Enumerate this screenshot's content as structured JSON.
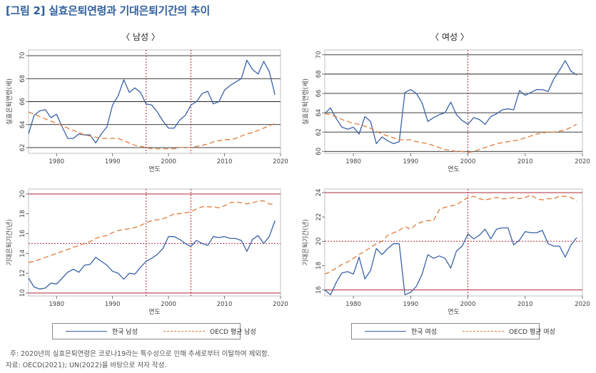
{
  "figure": {
    "title": "[그림 2] 실효은퇴연령과 기대은퇴기간의 추이",
    "panel_titles": {
      "male": "〈 남성 〉",
      "female": "〈 여성 〉"
    },
    "legends": {
      "male": [
        "한국 남성",
        "OECD 평균 남성"
      ],
      "female": [
        "한국 여성",
        "OECD 평균 여성"
      ]
    },
    "notes": [
      "주:  2020년의 실효은퇴연령은 코로나19라는 특수성으로 인해 추세로부터 이탈하여 제외함.",
      "자료: OECD(2021); UN(2022)을 바탕으로 저자 작성."
    ],
    "colors": {
      "korea": "#3a62a8",
      "oecd": "#e07b39",
      "vline": "#b0283a",
      "hline": "#b0283a",
      "grid": "#222222"
    }
  },
  "chart_data": [
    {
      "type": "line",
      "panel": "male-retirement-age",
      "xlabel": "연도",
      "ylabel": "실효은퇴연령(세)",
      "xlim": [
        1975,
        2020
      ],
      "ylim": [
        61.5,
        70.5
      ],
      "xticks": [
        1980,
        1990,
        2000,
        2010,
        2020
      ],
      "yticks": [
        62,
        64,
        66,
        68,
        70
      ],
      "grid": "horizontal",
      "vlines": [
        1996,
        2004
      ],
      "hlines": [],
      "x": [
        1975,
        1976,
        1977,
        1978,
        1979,
        1980,
        1981,
        1982,
        1983,
        1984,
        1985,
        1986,
        1987,
        1988,
        1989,
        1990,
        1991,
        1992,
        1993,
        1994,
        1995,
        1996,
        1997,
        1998,
        1999,
        2000,
        2001,
        2002,
        2003,
        2004,
        2005,
        2006,
        2007,
        2008,
        2009,
        2010,
        2011,
        2012,
        2013,
        2014,
        2015,
        2016,
        2017,
        2018,
        2019
      ],
      "series": [
        {
          "name": "한국 남성",
          "style": "solid",
          "values": [
            63.2,
            64.8,
            65.2,
            65.3,
            64.6,
            64.9,
            63.8,
            62.8,
            62.8,
            63.2,
            63.1,
            63.1,
            62.4,
            63.2,
            63.8,
            65.7,
            66.5,
            67.9,
            66.8,
            67.2,
            66.8,
            65.8,
            65.7,
            65.1,
            64.3,
            63.7,
            63.7,
            64.4,
            64.8,
            65.7,
            66.0,
            66.7,
            66.9,
            65.8,
            66.0,
            67.0,
            67.4,
            67.7,
            68.0,
            69.6,
            68.8,
            68.4,
            69.5,
            68.6,
            66.6
          ]
        },
        {
          "name": "OECD 평균 남성",
          "style": "dashed",
          "values": [
            65.1,
            64.9,
            64.7,
            64.5,
            64.3,
            64.1,
            63.9,
            63.7,
            63.5,
            63.3,
            63.1,
            63.0,
            62.9,
            62.8,
            62.8,
            62.8,
            62.8,
            62.6,
            62.4,
            62.2,
            62.1,
            62.0,
            61.9,
            61.9,
            61.9,
            61.9,
            61.9,
            62.0,
            62.0,
            62.0,
            62.1,
            62.2,
            62.3,
            62.5,
            62.6,
            62.7,
            62.7,
            62.8,
            63.0,
            63.2,
            63.3,
            63.5,
            63.7,
            63.9,
            64.1
          ]
        }
      ]
    },
    {
      "type": "line",
      "panel": "female-retirement-age",
      "xlabel": "연도",
      "ylabel": "실효은퇴연령(세)",
      "xlim": [
        1975,
        2020
      ],
      "ylim": [
        59.8,
        70.5
      ],
      "xticks": [
        1980,
        1990,
        2000,
        2010,
        2020
      ],
      "yticks": [
        60,
        62,
        64,
        66,
        68,
        70
      ],
      "grid": "horizontal",
      "vlines": [
        2000
      ],
      "hlines": [],
      "x": [
        1975,
        1976,
        1977,
        1978,
        1979,
        1980,
        1981,
        1982,
        1983,
        1984,
        1985,
        1986,
        1987,
        1988,
        1989,
        1990,
        1991,
        1992,
        1993,
        1994,
        1995,
        1996,
        1997,
        1998,
        1999,
        2000,
        2001,
        2002,
        2003,
        2004,
        2005,
        2006,
        2007,
        2008,
        2009,
        2010,
        2011,
        2012,
        2013,
        2014,
        2015,
        2016,
        2017,
        2018,
        2019
      ],
      "series": [
        {
          "name": "한국 여성",
          "style": "solid",
          "values": [
            63.9,
            64.5,
            63.4,
            62.5,
            62.3,
            62.5,
            61.8,
            63.6,
            63.1,
            60.8,
            61.5,
            61.1,
            60.8,
            61.0,
            66.1,
            66.4,
            66.0,
            65.0,
            63.1,
            63.5,
            63.8,
            64.0,
            65.1,
            63.8,
            63.2,
            62.8,
            63.5,
            63.3,
            62.8,
            63.6,
            63.9,
            64.3,
            64.4,
            64.3,
            66.3,
            65.8,
            66.1,
            66.4,
            66.4,
            66.2,
            67.5,
            68.4,
            69.4,
            68.3,
            67.9
          ]
        },
        {
          "name": "OECD 평균 여성",
          "style": "dashed",
          "values": [
            63.9,
            63.8,
            63.6,
            63.3,
            63.1,
            62.9,
            62.8,
            62.6,
            62.4,
            62.1,
            61.8,
            61.6,
            61.4,
            61.2,
            61.2,
            61.2,
            61.0,
            60.9,
            60.8,
            60.6,
            60.4,
            60.2,
            60.1,
            60.0,
            60.0,
            59.9,
            60.0,
            60.2,
            60.4,
            60.6,
            60.8,
            60.9,
            61.0,
            61.1,
            61.2,
            61.4,
            61.6,
            61.8,
            61.9,
            62.0,
            62.0,
            62.1,
            62.2,
            62.5,
            62.8
          ]
        }
      ]
    },
    {
      "type": "line",
      "panel": "male-retirement-period",
      "xlabel": "연도",
      "ylabel": "기대은퇴기간(년)",
      "xlim": [
        1975,
        2020
      ],
      "ylim": [
        9.7,
        20.5
      ],
      "xticks": [
        1980,
        1990,
        2000,
        2010,
        2020
      ],
      "yticks": [
        10,
        12,
        14,
        16,
        18,
        20
      ],
      "grid": "none",
      "vlines": [
        1996,
        2004
      ],
      "hlines": [
        20,
        15,
        10
      ],
      "x": [
        1975,
        1976,
        1977,
        1978,
        1979,
        1980,
        1981,
        1982,
        1983,
        1984,
        1985,
        1986,
        1987,
        1988,
        1989,
        1990,
        1991,
        1992,
        1993,
        1994,
        1995,
        1996,
        1997,
        1998,
        1999,
        2000,
        2001,
        2002,
        2003,
        2004,
        2005,
        2006,
        2007,
        2008,
        2009,
        2010,
        2011,
        2012,
        2013,
        2014,
        2015,
        2016,
        2017,
        2018,
        2019
      ],
      "series": [
        {
          "name": "한국 남성",
          "style": "solid",
          "values": [
            11.5,
            10.6,
            10.4,
            10.5,
            11.0,
            10.9,
            11.5,
            12.1,
            12.4,
            12.1,
            12.8,
            12.9,
            13.6,
            13.2,
            12.8,
            12.2,
            12.0,
            11.4,
            12.0,
            11.9,
            12.6,
            13.2,
            13.5,
            13.9,
            14.5,
            15.7,
            15.7,
            15.4,
            15.0,
            14.7,
            15.3,
            15.0,
            14.8,
            15.7,
            15.6,
            15.7,
            15.5,
            15.5,
            15.3,
            14.2,
            15.4,
            15.8,
            15.0,
            15.7,
            17.3
          ]
        },
        {
          "name": "OECD 평균 남성",
          "style": "dashed",
          "values": [
            13.1,
            13.2,
            13.4,
            13.6,
            13.8,
            14.0,
            14.2,
            14.4,
            14.6,
            14.8,
            15.0,
            15.2,
            15.5,
            15.7,
            15.8,
            16.1,
            16.3,
            16.4,
            16.5,
            16.6,
            16.8,
            17.1,
            17.3,
            17.4,
            17.5,
            17.7,
            18.0,
            18.0,
            18.1,
            18.2,
            18.5,
            18.7,
            18.7,
            18.7,
            18.6,
            18.8,
            19.1,
            19.2,
            19.1,
            19.0,
            19.1,
            19.3,
            19.3,
            19.0,
            18.9
          ]
        }
      ]
    },
    {
      "type": "line",
      "panel": "female-retirement-period",
      "xlabel": "연도",
      "ylabel": "기대은퇴기간(년)",
      "xlim": [
        1975,
        2020
      ],
      "ylim": [
        15.5,
        24.3
      ],
      "xticks": [
        1980,
        1990,
        2000,
        2010,
        2020
      ],
      "yticks": [
        16,
        18,
        20,
        22,
        24
      ],
      "grid": "none",
      "vlines": [
        2000
      ],
      "hlines": [
        24,
        20,
        16
      ],
      "x": [
        1975,
        1976,
        1977,
        1978,
        1979,
        1980,
        1981,
        1982,
        1983,
        1984,
        1985,
        1986,
        1987,
        1988,
        1989,
        1990,
        1991,
        1992,
        1993,
        1994,
        1995,
        1996,
        1997,
        1998,
        1999,
        2000,
        2001,
        2002,
        2003,
        2004,
        2005,
        2006,
        2007,
        2008,
        2009,
        2010,
        2011,
        2012,
        2013,
        2014,
        2015,
        2016,
        2017,
        2018,
        2019
      ],
      "series": [
        {
          "name": "한국 여성",
          "style": "solid",
          "values": [
            16.0,
            15.6,
            16.6,
            17.4,
            17.5,
            17.3,
            18.7,
            16.9,
            17.6,
            19.4,
            18.9,
            19.4,
            19.8,
            19.8,
            15.6,
            15.8,
            16.3,
            17.3,
            18.9,
            18.6,
            18.8,
            18.6,
            17.8,
            19.2,
            19.6,
            20.6,
            20.2,
            20.5,
            21.0,
            20.2,
            21.0,
            21.1,
            21.1,
            19.7,
            20.1,
            20.8,
            20.7,
            20.7,
            20.9,
            19.8,
            19.6,
            19.6,
            18.7,
            19.7,
            20.3
          ]
        },
        {
          "name": "OECD 평균 여성",
          "style": "dashed",
          "values": [
            17.3,
            17.5,
            17.8,
            18.1,
            18.3,
            18.6,
            18.9,
            19.2,
            19.5,
            19.8,
            20.0,
            20.5,
            20.7,
            20.9,
            21.2,
            21.0,
            21.4,
            21.6,
            21.7,
            21.7,
            22.6,
            22.8,
            22.9,
            23.0,
            23.3,
            23.6,
            23.7,
            23.5,
            23.4,
            23.5,
            23.6,
            23.5,
            23.5,
            23.6,
            23.5,
            23.6,
            23.8,
            23.5,
            23.4,
            23.5,
            23.5,
            23.7,
            23.7,
            23.6,
            23.3
          ]
        }
      ]
    }
  ]
}
